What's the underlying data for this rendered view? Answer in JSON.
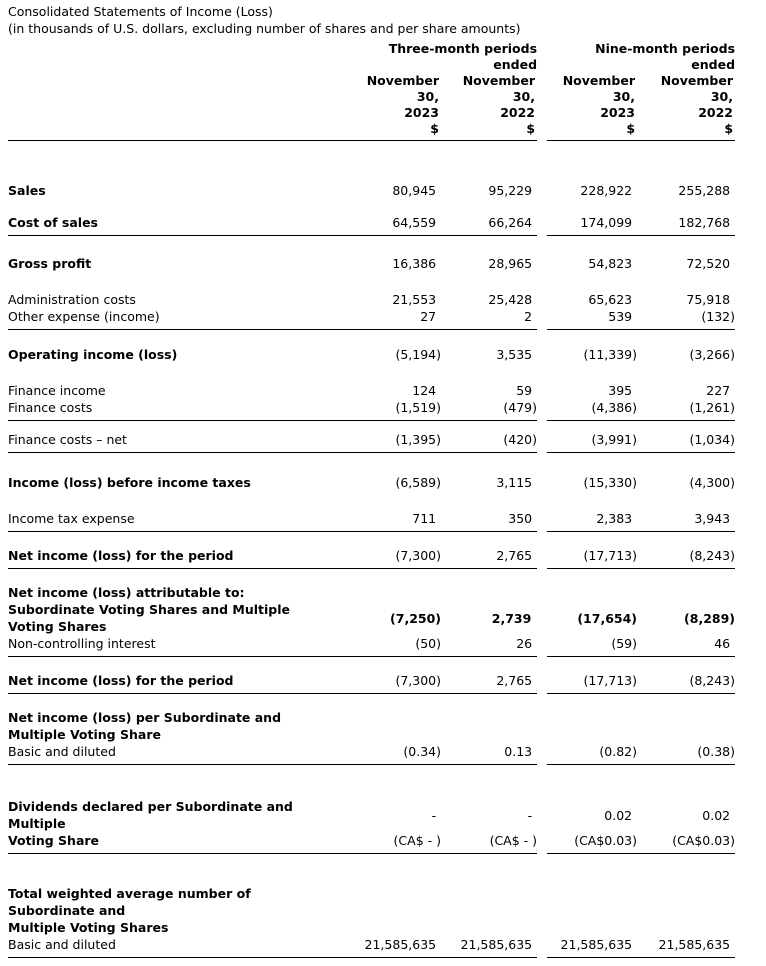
{
  "document": {
    "title": "Consolidated Statements of Income (Loss)",
    "subtitle": "(in thousands of U.S. dollars, excluding number of shares and per share amounts)"
  },
  "table": {
    "groups": [
      {
        "lines": [
          "Three-month periods",
          "ended"
        ]
      },
      {
        "lines": [
          "Nine-month periods",
          "ended"
        ]
      }
    ],
    "columns": [
      {
        "header_lines": [
          "November",
          "30,",
          "2023"
        ],
        "unit": "$"
      },
      {
        "header_lines": [
          "November",
          "30,",
          "2022"
        ],
        "unit": "$"
      },
      {
        "header_lines": [
          "November",
          "30,",
          "2023"
        ],
        "unit": "$"
      },
      {
        "header_lines": [
          "November",
          "30,",
          "2022"
        ],
        "unit": "$"
      }
    ],
    "rows": [
      {
        "label_lines": [
          "Sales"
        ],
        "bold": true,
        "values": [
          "80,945",
          "95,229",
          "228,922",
          "255,288"
        ],
        "rule": false,
        "space_before": 41
      },
      {
        "label_lines": [
          "Cost of sales"
        ],
        "bold": true,
        "values": [
          "64,559",
          "66,264",
          "174,099",
          "182,768"
        ],
        "rule": true,
        "space_before": 15
      },
      {
        "label_lines": [
          "Gross profit"
        ],
        "bold": true,
        "values": [
          "16,386",
          "28,965",
          "54,823",
          "72,520"
        ],
        "rule": false,
        "space_before": 19
      },
      {
        "label_lines": [
          "Administration costs"
        ],
        "bold": false,
        "values": [
          "21,553",
          "25,428",
          "65,623",
          "75,918"
        ],
        "rule": false,
        "space_before": 19
      },
      {
        "label_lines": [
          "Other expense (income)"
        ],
        "bold": false,
        "values": [
          "27",
          "2",
          "539",
          "(132)"
        ],
        "rule": true,
        "space_before": 0
      },
      {
        "label_lines": [
          "Operating income (loss)"
        ],
        "bold": true,
        "values": [
          "(5,194)",
          "3,535",
          "(11,339)",
          "(3,266)"
        ],
        "rule": false,
        "space_before": 16
      },
      {
        "label_lines": [
          "Finance income"
        ],
        "bold": false,
        "values": [
          "124",
          "59",
          "395",
          "227"
        ],
        "rule": false,
        "space_before": 19
      },
      {
        "label_lines": [
          "Finance costs"
        ],
        "bold": false,
        "values": [
          "(1,519)",
          "(479)",
          "(4,386)",
          "(1,261)"
        ],
        "rule": true,
        "space_before": 0
      },
      {
        "label_lines": [
          "Finance costs – net"
        ],
        "bold": false,
        "values": [
          "(1,395)",
          "(420)",
          "(3,991)",
          "(1,034)"
        ],
        "rule": true,
        "space_before": 10
      },
      {
        "label_lines": [
          "Income (loss) before income taxes"
        ],
        "bold": true,
        "values": [
          "(6,589)",
          "3,115",
          "(15,330)",
          "(4,300)"
        ],
        "rule": false,
        "space_before": 21
      },
      {
        "label_lines": [
          "Income tax expense"
        ],
        "bold": false,
        "values": [
          "711",
          "350",
          "2,383",
          "3,943"
        ],
        "rule": true,
        "space_before": 19
      },
      {
        "label_lines": [
          "Net income (loss) for the period"
        ],
        "bold": true,
        "values": [
          "(7,300)",
          "2,765",
          "(17,713)",
          "(8,243)"
        ],
        "rule": true,
        "space_before": 15
      },
      {
        "label_lines": [
          "Net income (loss) attributable to:"
        ],
        "bold": true,
        "values": null,
        "rule": false,
        "space_before": 15
      },
      {
        "label_lines": [
          "Subordinate Voting Shares and Multiple",
          "Voting Shares"
        ],
        "bold": true,
        "bold_values": true,
        "values": [
          "(7,250)",
          "2,739",
          "(17,654)",
          "(8,289)"
        ],
        "rule": false,
        "space_before": 0
      },
      {
        "label_lines": [
          "Non-controlling interest"
        ],
        "bold": false,
        "values": [
          "(50)",
          "26",
          "(59)",
          "46"
        ],
        "rule": true,
        "space_before": 0
      },
      {
        "label_lines": [
          "Net income (loss) for the period"
        ],
        "bold": true,
        "values": [
          "(7,300)",
          "2,765",
          "(17,713)",
          "(8,243)"
        ],
        "rule": true,
        "space_before": 15
      },
      {
        "label_lines": [
          "Net income (loss) per Subordinate and",
          "Multiple Voting Share"
        ],
        "bold": true,
        "values": null,
        "rule": false,
        "space_before": 15
      },
      {
        "label_lines": [
          "Basic and diluted"
        ],
        "bold": false,
        "values": [
          "(0.34)",
          "0.13",
          "(0.82)",
          "(0.38)"
        ],
        "rule": true,
        "space_before": 0
      },
      {
        "label_lines": [
          "Dividends declared per Subordinate and",
          "Multiple"
        ],
        "bold": true,
        "values": [
          "-",
          "-",
          "0.02",
          "0.02"
        ],
        "rule": false,
        "space_before": 33
      },
      {
        "label_lines": [
          "Voting Share"
        ],
        "bold": true,
        "values": [
          "(CA$ - )",
          "(CA$ - )",
          "(CA$0.03)",
          "(CA$0.03)"
        ],
        "rule": true,
        "space_before": 0
      },
      {
        "label_lines": [
          "Total weighted average number of",
          "Subordinate and",
          "Multiple Voting Shares"
        ],
        "bold": true,
        "values": null,
        "rule": false,
        "space_before": 31
      },
      {
        "label_lines": [
          "Basic and diluted"
        ],
        "bold": false,
        "values": [
          "21,585,635",
          "21,585,635",
          "21,585,635",
          "21,585,635"
        ],
        "rule": true,
        "space_before": 0
      }
    ]
  }
}
